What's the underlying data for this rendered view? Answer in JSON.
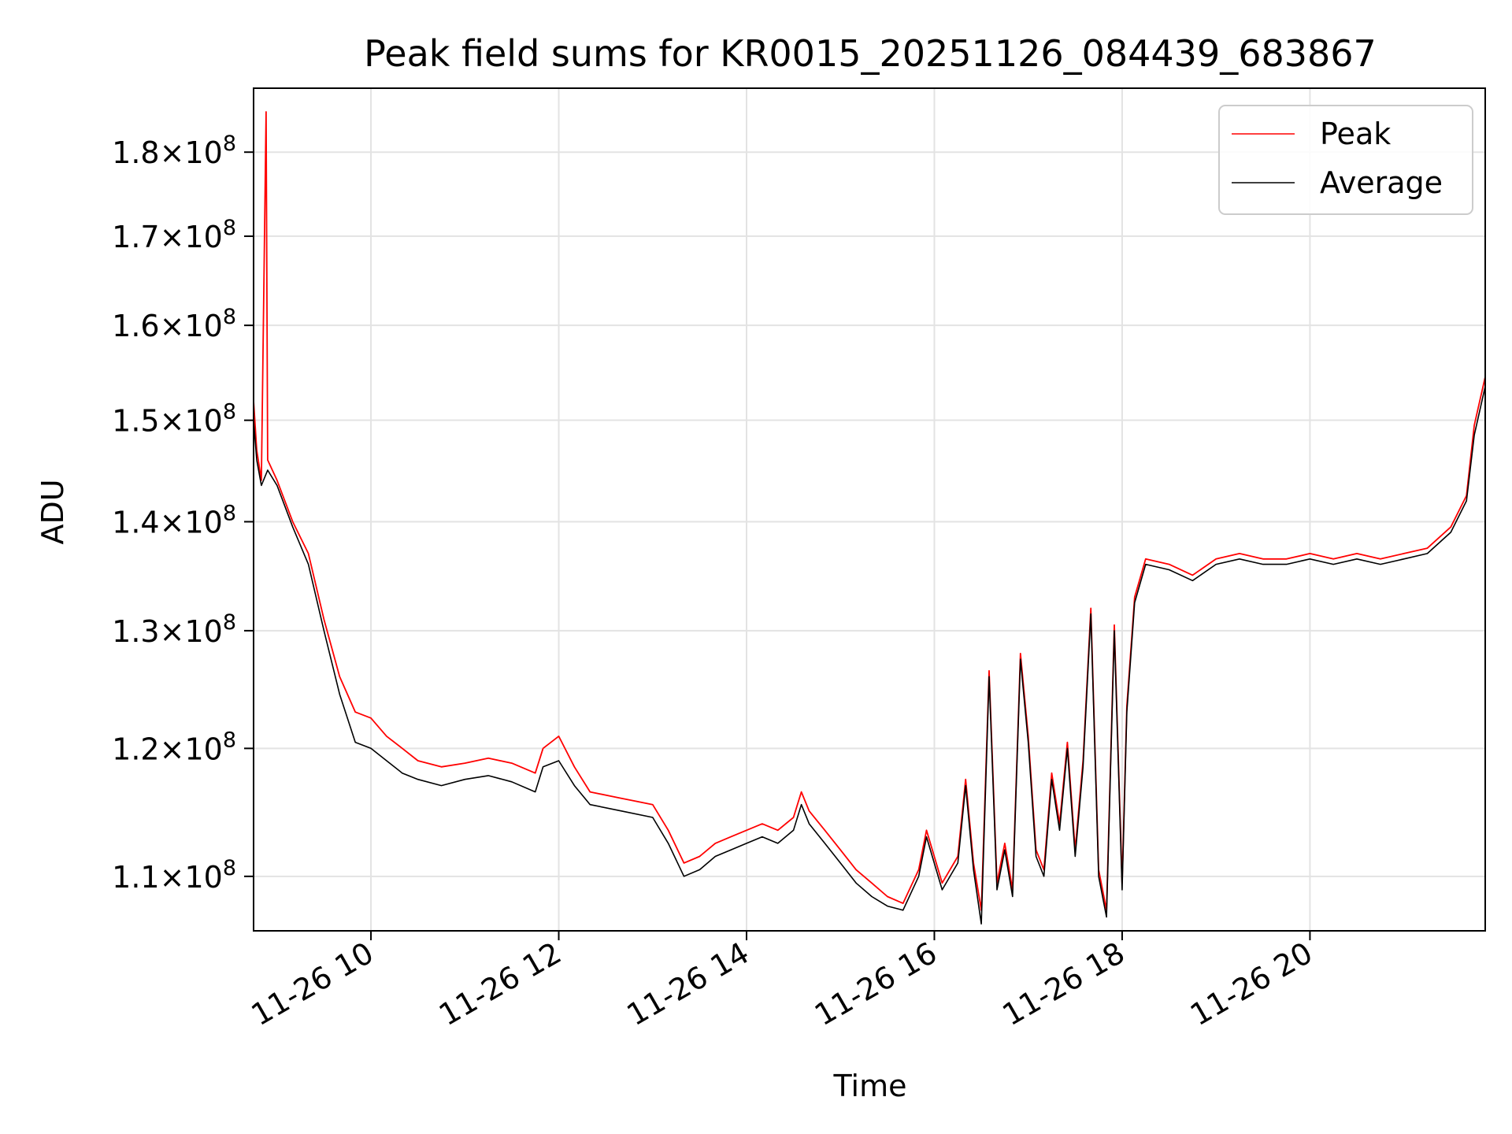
{
  "chart_data": {
    "type": "line",
    "title": "Peak field sums for KR0015_20251126_084439_683867",
    "xlabel": "Time",
    "ylabel": "ADU",
    "x_range": [
      "11-26 08:45",
      "11-26 21:52"
    ],
    "ylim": [
      106000000,
      188000000
    ],
    "y_scale": "log",
    "grid": true,
    "legend_position": "top-right",
    "x_ticks": [
      {
        "t": "11-26 10:00",
        "label": "11-26 10"
      },
      {
        "t": "11-26 12:00",
        "label": "11-26 12"
      },
      {
        "t": "11-26 14:00",
        "label": "11-26 14"
      },
      {
        "t": "11-26 16:00",
        "label": "11-26 16"
      },
      {
        "t": "11-26 18:00",
        "label": "11-26 18"
      },
      {
        "t": "11-26 20:00",
        "label": "11-26 20"
      }
    ],
    "y_ticks": [
      {
        "value": 110000000,
        "mantissa": "1.1",
        "exp": "8"
      },
      {
        "value": 120000000,
        "mantissa": "1.2",
        "exp": "8"
      },
      {
        "value": 130000000,
        "mantissa": "1.3",
        "exp": "8"
      },
      {
        "value": 140000000,
        "mantissa": "1.4",
        "exp": "8"
      },
      {
        "value": 150000000,
        "mantissa": "1.5",
        "exp": "8"
      },
      {
        "value": 160000000,
        "mantissa": "1.6",
        "exp": "8"
      },
      {
        "value": 170000000,
        "mantissa": "1.7",
        "exp": "8"
      },
      {
        "value": 180000000,
        "mantissa": "1.8",
        "exp": "8"
      }
    ],
    "series": [
      {
        "name": "Peak",
        "color": "#ff0000",
        "points": [
          [
            "11-26 08:45",
            152000000
          ],
          [
            "11-26 08:47",
            147000000
          ],
          [
            "11-26 08:50",
            144000000
          ],
          [
            "11-26 08:53",
            185000000
          ],
          [
            "11-26 08:54",
            146000000
          ],
          [
            "11-26 09:00",
            144000000
          ],
          [
            "11-26 09:10",
            140000000
          ],
          [
            "11-26 09:20",
            137000000
          ],
          [
            "11-26 09:30",
            131000000
          ],
          [
            "11-26 09:40",
            126000000
          ],
          [
            "11-26 09:50",
            123000000
          ],
          [
            "11-26 10:00",
            122500000
          ],
          [
            "11-26 10:10",
            121000000
          ],
          [
            "11-26 10:20",
            120000000
          ],
          [
            "11-26 10:30",
            119000000
          ],
          [
            "11-26 10:45",
            118500000
          ],
          [
            "11-26 11:00",
            118800000
          ],
          [
            "11-26 11:15",
            119200000
          ],
          [
            "11-26 11:30",
            118800000
          ],
          [
            "11-26 11:45",
            118000000
          ],
          [
            "11-26 11:50",
            120000000
          ],
          [
            "11-26 12:00",
            121000000
          ],
          [
            "11-26 12:10",
            118500000
          ],
          [
            "11-26 12:20",
            116500000
          ],
          [
            "11-26 12:40",
            116000000
          ],
          [
            "11-26 13:00",
            115500000
          ],
          [
            "11-26 13:10",
            113500000
          ],
          [
            "11-26 13:20",
            111000000
          ],
          [
            "11-26 13:30",
            111500000
          ],
          [
            "11-26 13:40",
            112500000
          ],
          [
            "11-26 13:50",
            113000000
          ],
          [
            "11-26 14:00",
            113500000
          ],
          [
            "11-26 14:10",
            114000000
          ],
          [
            "11-26 14:20",
            113500000
          ],
          [
            "11-26 14:30",
            114500000
          ],
          [
            "11-26 14:35",
            116500000
          ],
          [
            "11-26 14:40",
            115000000
          ],
          [
            "11-26 14:50",
            113500000
          ],
          [
            "11-26 15:00",
            112000000
          ],
          [
            "11-26 15:10",
            110500000
          ],
          [
            "11-26 15:20",
            109500000
          ],
          [
            "11-26 15:30",
            108500000
          ],
          [
            "11-26 15:40",
            108000000
          ],
          [
            "11-26 15:50",
            110500000
          ],
          [
            "11-26 15:55",
            113500000
          ],
          [
            "11-26 16:05",
            109500000
          ],
          [
            "11-26 16:15",
            111500000
          ],
          [
            "11-26 16:20",
            117500000
          ],
          [
            "11-26 16:25",
            111000000
          ],
          [
            "11-26 16:30",
            107500000
          ],
          [
            "11-26 16:35",
            126500000
          ],
          [
            "11-26 16:40",
            109500000
          ],
          [
            "11-26 16:45",
            112500000
          ],
          [
            "11-26 16:50",
            109000000
          ],
          [
            "11-26 16:55",
            128000000
          ],
          [
            "11-26 17:00",
            121000000
          ],
          [
            "11-26 17:05",
            112000000
          ],
          [
            "11-26 17:10",
            110500000
          ],
          [
            "11-26 17:15",
            118000000
          ],
          [
            "11-26 17:20",
            114000000
          ],
          [
            "11-26 17:25",
            120500000
          ],
          [
            "11-26 17:30",
            112000000
          ],
          [
            "11-26 17:35",
            119000000
          ],
          [
            "11-26 17:40",
            132000000
          ],
          [
            "11-26 17:45",
            110500000
          ],
          [
            "11-26 17:50",
            107500000
          ],
          [
            "11-26 17:55",
            130500000
          ],
          [
            "11-26 18:00",
            109500000
          ],
          [
            "11-26 18:03",
            123500000
          ],
          [
            "11-26 18:08",
            133000000
          ],
          [
            "11-26 18:15",
            136500000
          ],
          [
            "11-26 18:30",
            136000000
          ],
          [
            "11-26 18:45",
            135000000
          ],
          [
            "11-26 19:00",
            136500000
          ],
          [
            "11-26 19:15",
            137000000
          ],
          [
            "11-26 19:30",
            136500000
          ],
          [
            "11-26 19:45",
            136500000
          ],
          [
            "11-26 20:00",
            137000000
          ],
          [
            "11-26 20:15",
            136500000
          ],
          [
            "11-26 20:30",
            137000000
          ],
          [
            "11-26 20:45",
            136500000
          ],
          [
            "11-26 21:00",
            137000000
          ],
          [
            "11-26 21:15",
            137500000
          ],
          [
            "11-26 21:30",
            139500000
          ],
          [
            "11-26 21:40",
            142500000
          ],
          [
            "11-26 21:45",
            149500000
          ],
          [
            "11-26 21:52",
            154500000
          ]
        ]
      },
      {
        "name": "Average",
        "color": "#000000",
        "points": [
          [
            "11-26 08:45",
            150000000
          ],
          [
            "11-26 08:47",
            146000000
          ],
          [
            "11-26 08:50",
            143500000
          ],
          [
            "11-26 08:54",
            145000000
          ],
          [
            "11-26 09:00",
            143500000
          ],
          [
            "11-26 09:10",
            139500000
          ],
          [
            "11-26 09:20",
            136000000
          ],
          [
            "11-26 09:30",
            130000000
          ],
          [
            "11-26 09:40",
            124500000
          ],
          [
            "11-26 09:50",
            120500000
          ],
          [
            "11-26 10:00",
            120000000
          ],
          [
            "11-26 10:10",
            119000000
          ],
          [
            "11-26 10:20",
            118000000
          ],
          [
            "11-26 10:30",
            117500000
          ],
          [
            "11-26 10:45",
            117000000
          ],
          [
            "11-26 11:00",
            117500000
          ],
          [
            "11-26 11:15",
            117800000
          ],
          [
            "11-26 11:30",
            117300000
          ],
          [
            "11-26 11:45",
            116500000
          ],
          [
            "11-26 11:50",
            118500000
          ],
          [
            "11-26 12:00",
            119000000
          ],
          [
            "11-26 12:10",
            117000000
          ],
          [
            "11-26 12:20",
            115500000
          ],
          [
            "11-26 12:40",
            115000000
          ],
          [
            "11-26 13:00",
            114500000
          ],
          [
            "11-26 13:10",
            112500000
          ],
          [
            "11-26 13:20",
            110000000
          ],
          [
            "11-26 13:30",
            110500000
          ],
          [
            "11-26 13:40",
            111500000
          ],
          [
            "11-26 13:50",
            112000000
          ],
          [
            "11-26 14:00",
            112500000
          ],
          [
            "11-26 14:10",
            113000000
          ],
          [
            "11-26 14:20",
            112500000
          ],
          [
            "11-26 14:30",
            113500000
          ],
          [
            "11-26 14:35",
            115500000
          ],
          [
            "11-26 14:40",
            114000000
          ],
          [
            "11-26 14:50",
            112500000
          ],
          [
            "11-26 15:00",
            111000000
          ],
          [
            "11-26 15:10",
            109500000
          ],
          [
            "11-26 15:20",
            108500000
          ],
          [
            "11-26 15:30",
            107800000
          ],
          [
            "11-26 15:40",
            107500000
          ],
          [
            "11-26 15:50",
            110000000
          ],
          [
            "11-26 15:55",
            113000000
          ],
          [
            "11-26 16:05",
            109000000
          ],
          [
            "11-26 16:15",
            111000000
          ],
          [
            "11-26 16:20",
            117000000
          ],
          [
            "11-26 16:25",
            110500000
          ],
          [
            "11-26 16:30",
            106500000
          ],
          [
            "11-26 16:35",
            126000000
          ],
          [
            "11-26 16:40",
            109000000
          ],
          [
            "11-26 16:45",
            112000000
          ],
          [
            "11-26 16:50",
            108500000
          ],
          [
            "11-26 16:55",
            127500000
          ],
          [
            "11-26 17:00",
            120500000
          ],
          [
            "11-26 17:05",
            111500000
          ],
          [
            "11-26 17:10",
            110000000
          ],
          [
            "11-26 17:15",
            117500000
          ],
          [
            "11-26 17:20",
            113500000
          ],
          [
            "11-26 17:25",
            120000000
          ],
          [
            "11-26 17:30",
            111500000
          ],
          [
            "11-26 17:35",
            118500000
          ],
          [
            "11-26 17:40",
            131500000
          ],
          [
            "11-26 17:45",
            110000000
          ],
          [
            "11-26 17:50",
            107000000
          ],
          [
            "11-26 17:55",
            130000000
          ],
          [
            "11-26 18:00",
            109000000
          ],
          [
            "11-26 18:03",
            123000000
          ],
          [
            "11-26 18:08",
            132500000
          ],
          [
            "11-26 18:15",
            136000000
          ],
          [
            "11-26 18:30",
            135500000
          ],
          [
            "11-26 18:45",
            134500000
          ],
          [
            "11-26 19:00",
            136000000
          ],
          [
            "11-26 19:15",
            136500000
          ],
          [
            "11-26 19:30",
            136000000
          ],
          [
            "11-26 19:45",
            136000000
          ],
          [
            "11-26 20:00",
            136500000
          ],
          [
            "11-26 20:15",
            136000000
          ],
          [
            "11-26 20:30",
            136500000
          ],
          [
            "11-26 20:45",
            136000000
          ],
          [
            "11-26 21:00",
            136500000
          ],
          [
            "11-26 21:15",
            137000000
          ],
          [
            "11-26 21:30",
            139000000
          ],
          [
            "11-26 21:40",
            142000000
          ],
          [
            "11-26 21:45",
            148500000
          ],
          [
            "11-26 21:52",
            153500000
          ]
        ]
      }
    ]
  }
}
